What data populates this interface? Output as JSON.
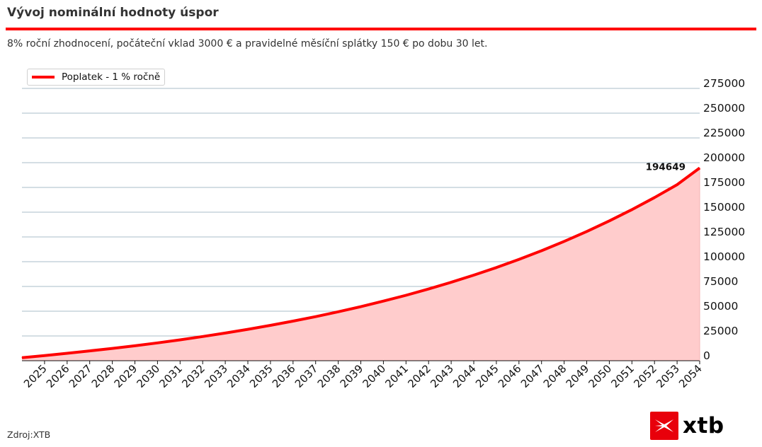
{
  "header": {
    "title": "Vývoj nominální hodnoty úspor",
    "subtitle": "8% roční zhodnocení, počáteční vklad 3000 € a pravidelné měsíční splátky 150 € po dobu 30 let."
  },
  "footer": {
    "source": "Zdroj:XTB",
    "logo_text": "xtb"
  },
  "colors": {
    "line": "#ff0000",
    "area": "#ffcccc",
    "grid": "#a9bec8",
    "brand": "#e8000b"
  },
  "chart_data": {
    "type": "area",
    "title": "Vývoj nominální hodnoty úspor",
    "xlabel": "",
    "ylabel": "",
    "legend": "top-left",
    "grid": "horizontal",
    "y_axis_position": "right",
    "ylim": [
      0,
      275000
    ],
    "xlim": [
      2024,
      2054
    ],
    "y_ticks": [
      "0",
      "25000",
      "50000",
      "75000",
      "100000",
      "125000",
      "150000",
      "175000",
      "200000",
      "225000",
      "250000",
      "275000"
    ],
    "x_ticks": [
      "2025",
      "2026",
      "2027",
      "2028",
      "2029",
      "2030",
      "2031",
      "2032",
      "2033",
      "2034",
      "2035",
      "2036",
      "2037",
      "2038",
      "2039",
      "2040",
      "2041",
      "2042",
      "2043",
      "2044",
      "2045",
      "2046",
      "2047",
      "2048",
      "2049",
      "2050",
      "2051",
      "2052",
      "2053",
      "2054"
    ],
    "series": [
      {
        "name": "Poplatek - 1 % ročně",
        "x": [
          2024,
          2025,
          2026,
          2027,
          2028,
          2029,
          2030,
          2031,
          2032,
          2033,
          2034,
          2035,
          2036,
          2037,
          2038,
          2039,
          2040,
          2041,
          2042,
          2043,
          2044,
          2045,
          2046,
          2047,
          2048,
          2049,
          2050,
          2051,
          2052,
          2053,
          2054
        ],
        "values": [
          3000,
          5200,
          7500,
          9900,
          12400,
          15100,
          18000,
          21100,
          24400,
          27900,
          31700,
          35700,
          40000,
          44500,
          49400,
          54600,
          60200,
          66100,
          72400,
          79200,
          86400,
          94100,
          102300,
          111100,
          120500,
          130500,
          141200,
          152600,
          164800,
          177800,
          194649
        ]
      }
    ],
    "annotations": [
      {
        "text": "194649",
        "x": 2054,
        "y": 194649
      }
    ]
  }
}
